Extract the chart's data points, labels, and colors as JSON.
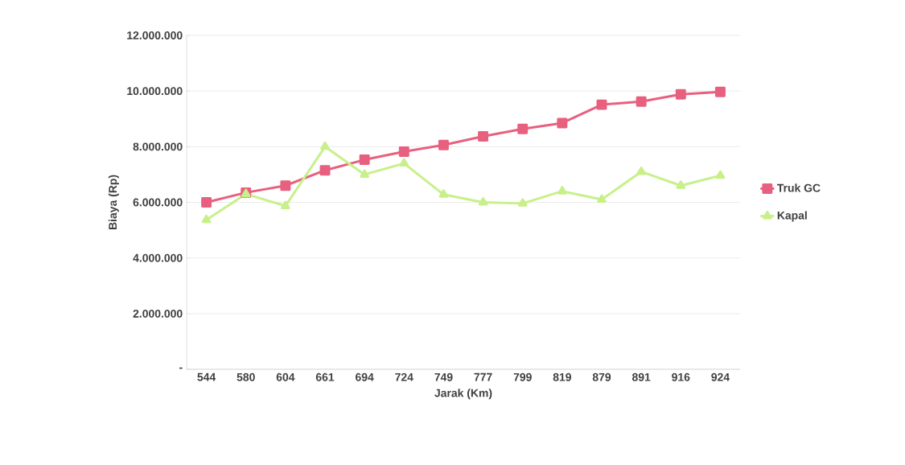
{
  "chart_data": {
    "type": "line",
    "xlabel": "Jarak (Km)",
    "ylabel": "Biaya (Rp)",
    "categories": [
      "544",
      "580",
      "604",
      "661",
      "694",
      "724",
      "749",
      "777",
      "799",
      "819",
      "879",
      "891",
      "916",
      "924"
    ],
    "series": [
      {
        "name": "Truk GC",
        "color": "#e8607f",
        "marker": "square",
        "values": [
          6000000,
          6350000,
          6600000,
          7150000,
          7530000,
          7820000,
          8060000,
          8370000,
          8640000,
          8850000,
          9510000,
          9620000,
          9880000,
          9970000
        ]
      },
      {
        "name": "Kapal",
        "color": "#c8f08a",
        "marker": "triangle",
        "values": [
          5370000,
          6300000,
          5870000,
          8000000,
          7000000,
          7400000,
          6280000,
          6000000,
          5960000,
          6400000,
          6100000,
          7100000,
          6600000,
          6960000
        ]
      }
    ],
    "ylim": [
      0,
      12000000
    ],
    "yticks": [
      {
        "value": 0,
        "label": "-"
      },
      {
        "value": 2000000,
        "label": "2.000.000"
      },
      {
        "value": 4000000,
        "label": "4.000.000"
      },
      {
        "value": 6000000,
        "label": "6.000.000"
      },
      {
        "value": 8000000,
        "label": "8.000.000"
      },
      {
        "value": 10000000,
        "label": "10.000.000"
      },
      {
        "value": 12000000,
        "label": "12.000.000"
      }
    ],
    "grid": "y",
    "legend": "right",
    "line_style": "solid"
  }
}
